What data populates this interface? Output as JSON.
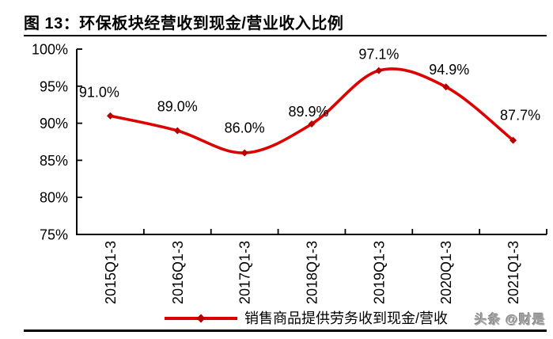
{
  "title": "图 13：环保板块经营收到现金/营业收入比例",
  "watermark": "头条 @财是",
  "legend": {
    "label": "销售商品提供劳务收到现金/营收"
  },
  "chart_data": {
    "type": "line",
    "title": "环保板块经营收到现金/营业收入比例",
    "categories": [
      "2015Q1-3",
      "2016Q1-3",
      "2017Q1-3",
      "2018Q1-3",
      "2019Q1-3",
      "2020Q1-3",
      "2021Q1-3"
    ],
    "series": [
      {
        "name": "销售商品提供劳务收到现金/营收",
        "values": [
          91.0,
          89.0,
          86.0,
          89.9,
          97.1,
          94.9,
          87.7
        ]
      }
    ],
    "data_labels": [
      "91.0%",
      "89.0%",
      "86.0%",
      "89.9%",
      "97.1%",
      "94.9%",
      "87.7%"
    ],
    "xlabel": "",
    "ylabel": "",
    "ylim": [
      75,
      100
    ],
    "ytick_values": [
      75,
      80,
      85,
      90,
      95,
      100
    ],
    "ytick_labels": [
      "75%",
      "80%",
      "85%",
      "90%",
      "95%",
      "100%"
    ],
    "grid": false,
    "legend_position": "bottom",
    "line_color": "#dd0000",
    "marker_color": "#b80000",
    "axis_color": "#000000",
    "label_color": "#000000"
  }
}
